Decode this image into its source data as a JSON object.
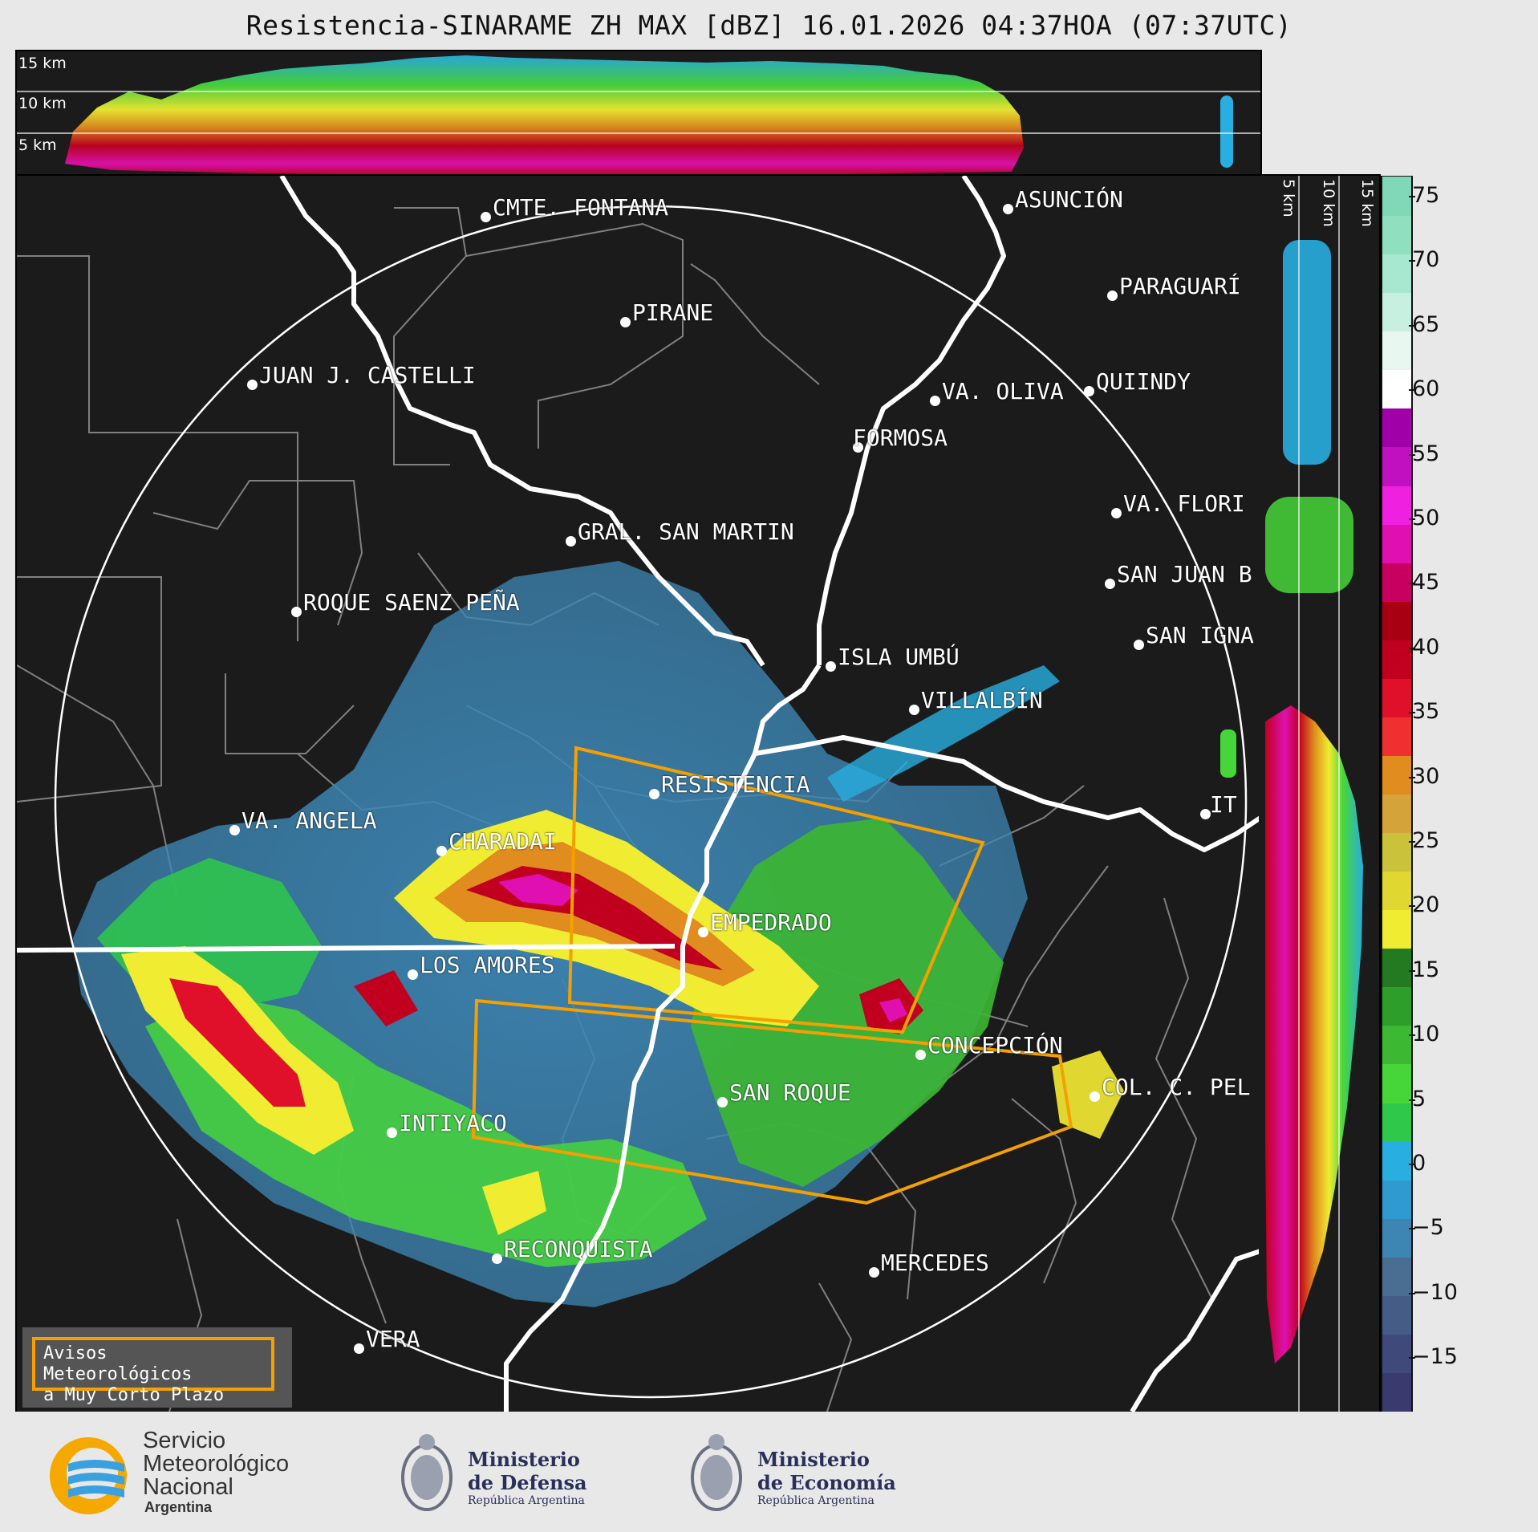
{
  "title": "Resistencia-SINARAME ZH MAX [dBZ] 16.01.2026 04:37HOA (07:37UTC)",
  "top_profile": {
    "height_labels": [
      "15 km",
      "10 km",
      "5 km"
    ]
  },
  "side_profile": {
    "height_labels": [
      "5 km",
      "10 km",
      "15 km"
    ]
  },
  "colorbar": {
    "unit": "dBZ",
    "ticks": [
      "75",
      "70",
      "65",
      "60",
      "55",
      "50",
      "45",
      "40",
      "35",
      "30",
      "25",
      "20",
      "15",
      "10",
      "5",
      "0",
      "−5",
      "−10",
      "−15"
    ],
    "colors": [
      "#3a3a6e",
      "#3f4a7a",
      "#455c86",
      "#4a6e92",
      "#3d86b4",
      "#2f9ad0",
      "#28aee0",
      "#2ec94a",
      "#46d63a",
      "#3cb832",
      "#2e9e2a",
      "#237a20",
      "#f0ec32",
      "#e0d830",
      "#c9c23a",
      "#d4a43a",
      "#e08c1e",
      "#f03030",
      "#e0102a",
      "#c0001e",
      "#a80012",
      "#c80060",
      "#e010b0",
      "#f020e0",
      "#c010c0",
      "#a000a8",
      "#ffffff",
      "#e8f8f0",
      "#c8f0e0",
      "#a8e8d0",
      "#90e0c0",
      "#80d8b8"
    ]
  },
  "cities": [
    {
      "name": "CMTE. FONTANA"
    },
    {
      "name": "ASUNCIÓN"
    },
    {
      "name": "PARAGUARÍ"
    },
    {
      "name": "PIRANE"
    },
    {
      "name": "JUAN J. CASTELLI"
    },
    {
      "name": "VA. OLIVA"
    },
    {
      "name": "QUIINDY"
    },
    {
      "name": "FORMOSA"
    },
    {
      "name": "VA. FLORI"
    },
    {
      "name": "GRAL. SAN MARTIN"
    },
    {
      "name": "SAN JUAN B"
    },
    {
      "name": "ROQUE SAENZ PEÑA"
    },
    {
      "name": "SAN IGNA"
    },
    {
      "name": "ISLA UMBÚ"
    },
    {
      "name": "VILLALBÍN"
    },
    {
      "name": "RESISTENCIA"
    },
    {
      "name": "VA. ANGELA"
    },
    {
      "name": "CHARADAI"
    },
    {
      "name": "IT"
    },
    {
      "name": "EMPEDRADO"
    },
    {
      "name": "LOS AMORES"
    },
    {
      "name": "CONCEPCIÓN"
    },
    {
      "name": "SAN ROQUE"
    },
    {
      "name": "COL. C. PEL"
    },
    {
      "name": "INTIYACO"
    },
    {
      "name": "RECONQUISTA"
    },
    {
      "name": "MERCEDES"
    },
    {
      "name": "VERA"
    }
  ],
  "aviso": {
    "line1": "Avisos Meteorológicos",
    "line2": "a Muy Corto Plazo"
  },
  "footer": {
    "smn": {
      "line1": "Servicio",
      "line2": "Meteorológico",
      "line3": "Nacional",
      "line4": "Argentina"
    },
    "defensa": {
      "line1": "Ministerio",
      "line2": "de Defensa",
      "line3": "República Argentina"
    },
    "economia": {
      "line1": "Ministerio",
      "line2": "de Economía",
      "line3": "República Argentina"
    }
  },
  "colors": {
    "warning_polygon": "#f5a000",
    "boundary": "#808080",
    "river": "#ffffff",
    "background": "#1b1b1b"
  }
}
